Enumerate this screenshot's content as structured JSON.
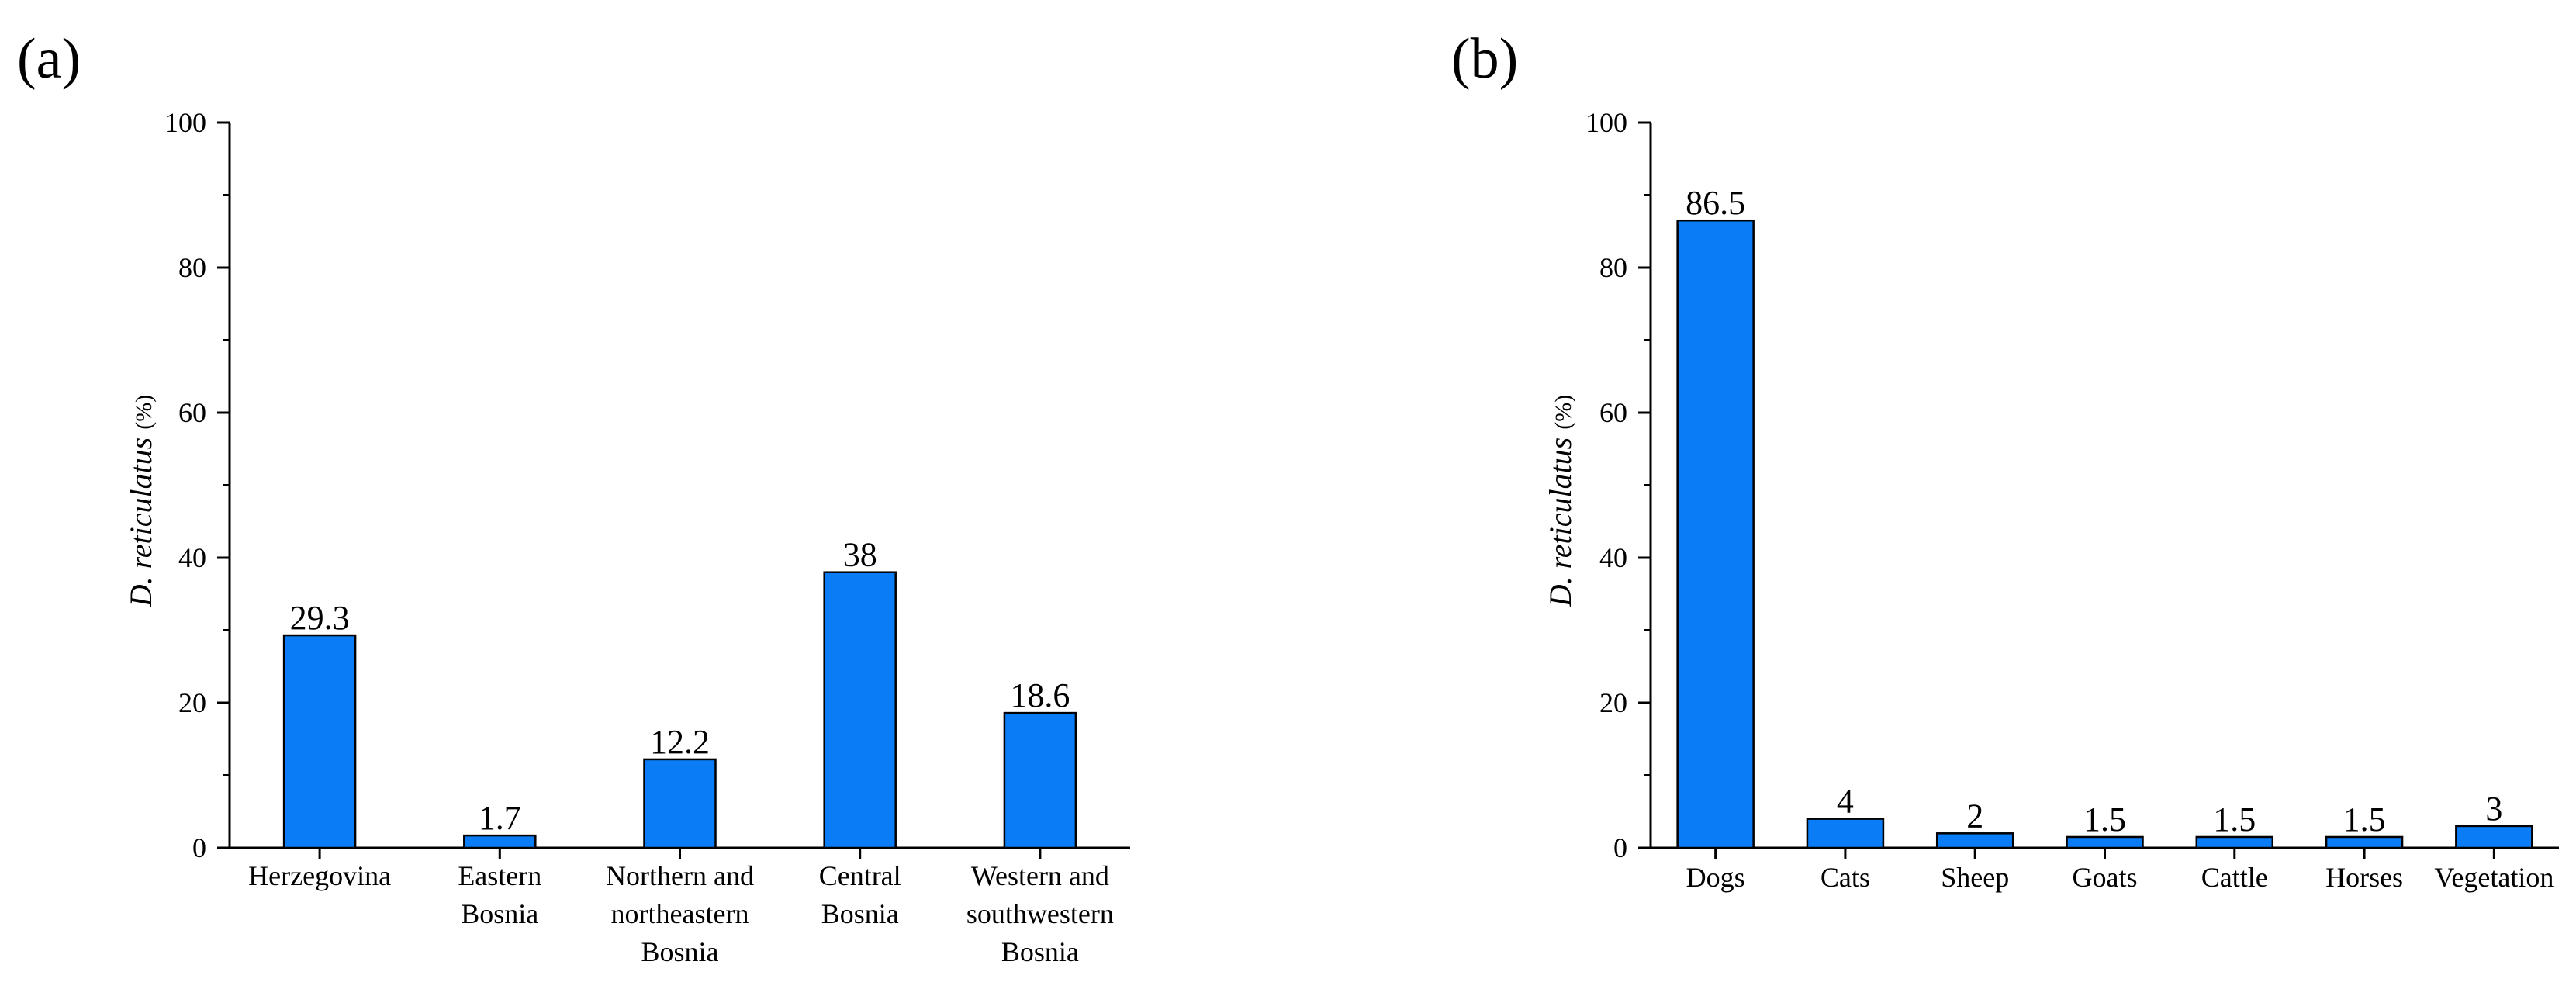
{
  "colors": {
    "bar_fill": "#0a7cf5",
    "axis": "#000000"
  },
  "chart_data": [
    {
      "panel_label": "(a)",
      "type": "bar",
      "ylabel_italic": "D. reticulatus",
      "ylabel_unit": "(%)",
      "ylim": [
        0,
        100
      ],
      "yticks": [
        0,
        20,
        40,
        60,
        80,
        100
      ],
      "ytick_labels": [
        "0",
        "20",
        "40",
        "60",
        "80",
        "100"
      ],
      "categories": [
        [
          "Herzegovina"
        ],
        [
          "Eastern",
          "Bosnia"
        ],
        [
          "Northern and",
          "northeastern",
          "Bosnia"
        ],
        [
          "Central",
          "Bosnia"
        ],
        [
          "Western and",
          "southwestern",
          "Bosnia"
        ]
      ],
      "values": [
        29.3,
        1.7,
        12.2,
        38,
        18.6
      ],
      "value_labels": [
        "29.3",
        "1.7",
        "12.2",
        "38",
        "18.6"
      ]
    },
    {
      "panel_label": "(b)",
      "type": "bar",
      "ylabel_italic": "D. reticulatus",
      "ylabel_unit": "(%)",
      "ylim": [
        0,
        100
      ],
      "yticks": [
        0,
        20,
        40,
        60,
        80,
        100
      ],
      "ytick_labels": [
        "0",
        "20",
        "40",
        "60",
        "80",
        "100"
      ],
      "categories": [
        [
          "Dogs"
        ],
        [
          "Cats"
        ],
        [
          "Sheep"
        ],
        [
          "Goats"
        ],
        [
          "Cattle"
        ],
        [
          "Horses"
        ],
        [
          "Vegetation"
        ]
      ],
      "values": [
        86.5,
        4,
        2,
        1.5,
        1.5,
        1.5,
        3
      ],
      "value_labels": [
        "86.5",
        "4",
        "2",
        "1.5",
        "1.5",
        "1.5",
        "3"
      ]
    }
  ]
}
